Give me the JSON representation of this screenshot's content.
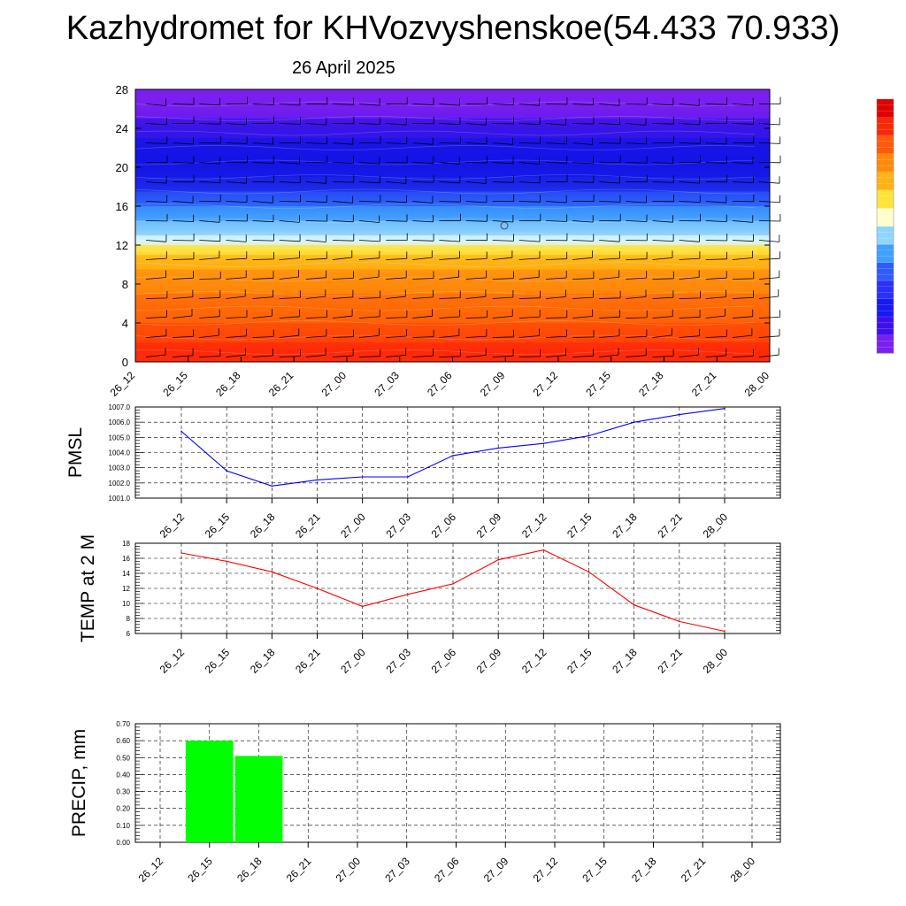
{
  "header": {
    "title": "Kazhydromet for KHVozvyshenskoe(54.433 70.933)",
    "date": "26 April 2025"
  },
  "chart_data": [
    {
      "type": "heatmap",
      "title": "",
      "xlabel": "",
      "ylabel": "",
      "x_ticks": [
        "26_12",
        "26_15",
        "26_18",
        "26_21",
        "27_00",
        "27_03",
        "27_06",
        "27_09",
        "27_12",
        "27_15",
        "27_18",
        "27_21",
        "28_00"
      ],
      "y_ticks": [
        "0",
        "4",
        "8",
        "12",
        "16",
        "20",
        "24",
        "28"
      ],
      "ylim": [
        0,
        28
      ],
      "colormap": [
        "#7a1fef",
        "#3e10e8",
        "#1818f2",
        "#2b2ffd",
        "#2f5cff",
        "#3fa0ff",
        "#8fd6ff",
        "#ffffcc",
        "#ffe23a",
        "#ffb314",
        "#ff8a0a",
        "#ff5a0a",
        "#f52a0a",
        "#e00000"
      ],
      "color_bands": [
        {
          "y_from": 0,
          "y_to": 2,
          "color": "#ff2a0a"
        },
        {
          "y_from": 2,
          "y_to": 4,
          "color": "#ff4a08"
        },
        {
          "y_from": 4,
          "y_to": 7,
          "color": "#ff6a08"
        },
        {
          "y_from": 7,
          "y_to": 9.5,
          "color": "#ff8c0c"
        },
        {
          "y_from": 9.5,
          "y_to": 11,
          "color": "#ffb414"
        },
        {
          "y_from": 11,
          "y_to": 12,
          "color": "#ffe23a"
        },
        {
          "y_from": 12,
          "y_to": 13,
          "color": "#d8f4ff"
        },
        {
          "y_from": 13,
          "y_to": 14.5,
          "color": "#7cc8ff"
        },
        {
          "y_from": 14.5,
          "y_to": 16,
          "color": "#3c98ff"
        },
        {
          "y_from": 16,
          "y_to": 17.5,
          "color": "#2a58f8"
        },
        {
          "y_from": 17.5,
          "y_to": 19,
          "color": "#1c24e8"
        },
        {
          "y_from": 19,
          "y_to": 23,
          "color": "#1414e6"
        },
        {
          "y_from": 23,
          "y_to": 25,
          "color": "#3a14e8"
        },
        {
          "y_from": 25,
          "y_to": 28,
          "color": "#7a1ff0"
        }
      ]
    },
    {
      "type": "line",
      "ylabel": "PMSL",
      "x": [
        "26_12",
        "26_15",
        "26_18",
        "26_21",
        "27_00",
        "27_03",
        "27_06",
        "27_09",
        "27_12",
        "27_15",
        "27_18",
        "27_21",
        "28_00"
      ],
      "y_ticks": [
        "1001.0",
        "1002.0",
        "1003.0",
        "1004.0",
        "1005.0",
        "1006.0",
        "1007.0"
      ],
      "ylim": [
        1001.0,
        1007.0
      ],
      "grid": true,
      "series": [
        {
          "values": [
            1005.4,
            1002.8,
            1001.8,
            1002.2,
            1002.4,
            1002.4,
            1003.8,
            1004.3,
            1004.6,
            1005.1,
            1006.0,
            1006.5,
            1006.9
          ],
          "color": "#0000ff"
        }
      ]
    },
    {
      "type": "line",
      "ylabel": "TEMP at 2 M",
      "x": [
        "26_12",
        "26_15",
        "26_18",
        "26_21",
        "27_00",
        "27_03",
        "27_06",
        "27_09",
        "27_12",
        "27_15",
        "27_18",
        "27_21",
        "28_00"
      ],
      "y_ticks": [
        "6",
        "8",
        "10",
        "12",
        "14",
        "16",
        "18"
      ],
      "ylim": [
        6,
        18
      ],
      "grid": true,
      "series": [
        {
          "values": [
            16.7,
            15.6,
            14.2,
            12.0,
            9.6,
            11.2,
            12.6,
            15.8,
            17.1,
            14.2,
            9.8,
            7.6,
            6.3
          ],
          "color": "#ff0000"
        }
      ]
    },
    {
      "type": "bar",
      "ylabel": "PRECIP, mm",
      "categories": [
        "26_12",
        "26_15",
        "26_18",
        "26_21",
        "27_00",
        "27_03",
        "27_06",
        "27_09",
        "27_12",
        "27_15",
        "27_18",
        "27_21",
        "28_00"
      ],
      "values": [
        0,
        0.6,
        0.51,
        0,
        0,
        0,
        0,
        0,
        0,
        0,
        0,
        0,
        0
      ],
      "y_ticks": [
        "0.00",
        "0.10",
        "0.20",
        "0.30",
        "0.40",
        "0.50",
        "0.60",
        "0.70"
      ],
      "ylim": [
        0,
        0.7
      ],
      "grid": true,
      "bar_color": "#00ff00"
    }
  ]
}
